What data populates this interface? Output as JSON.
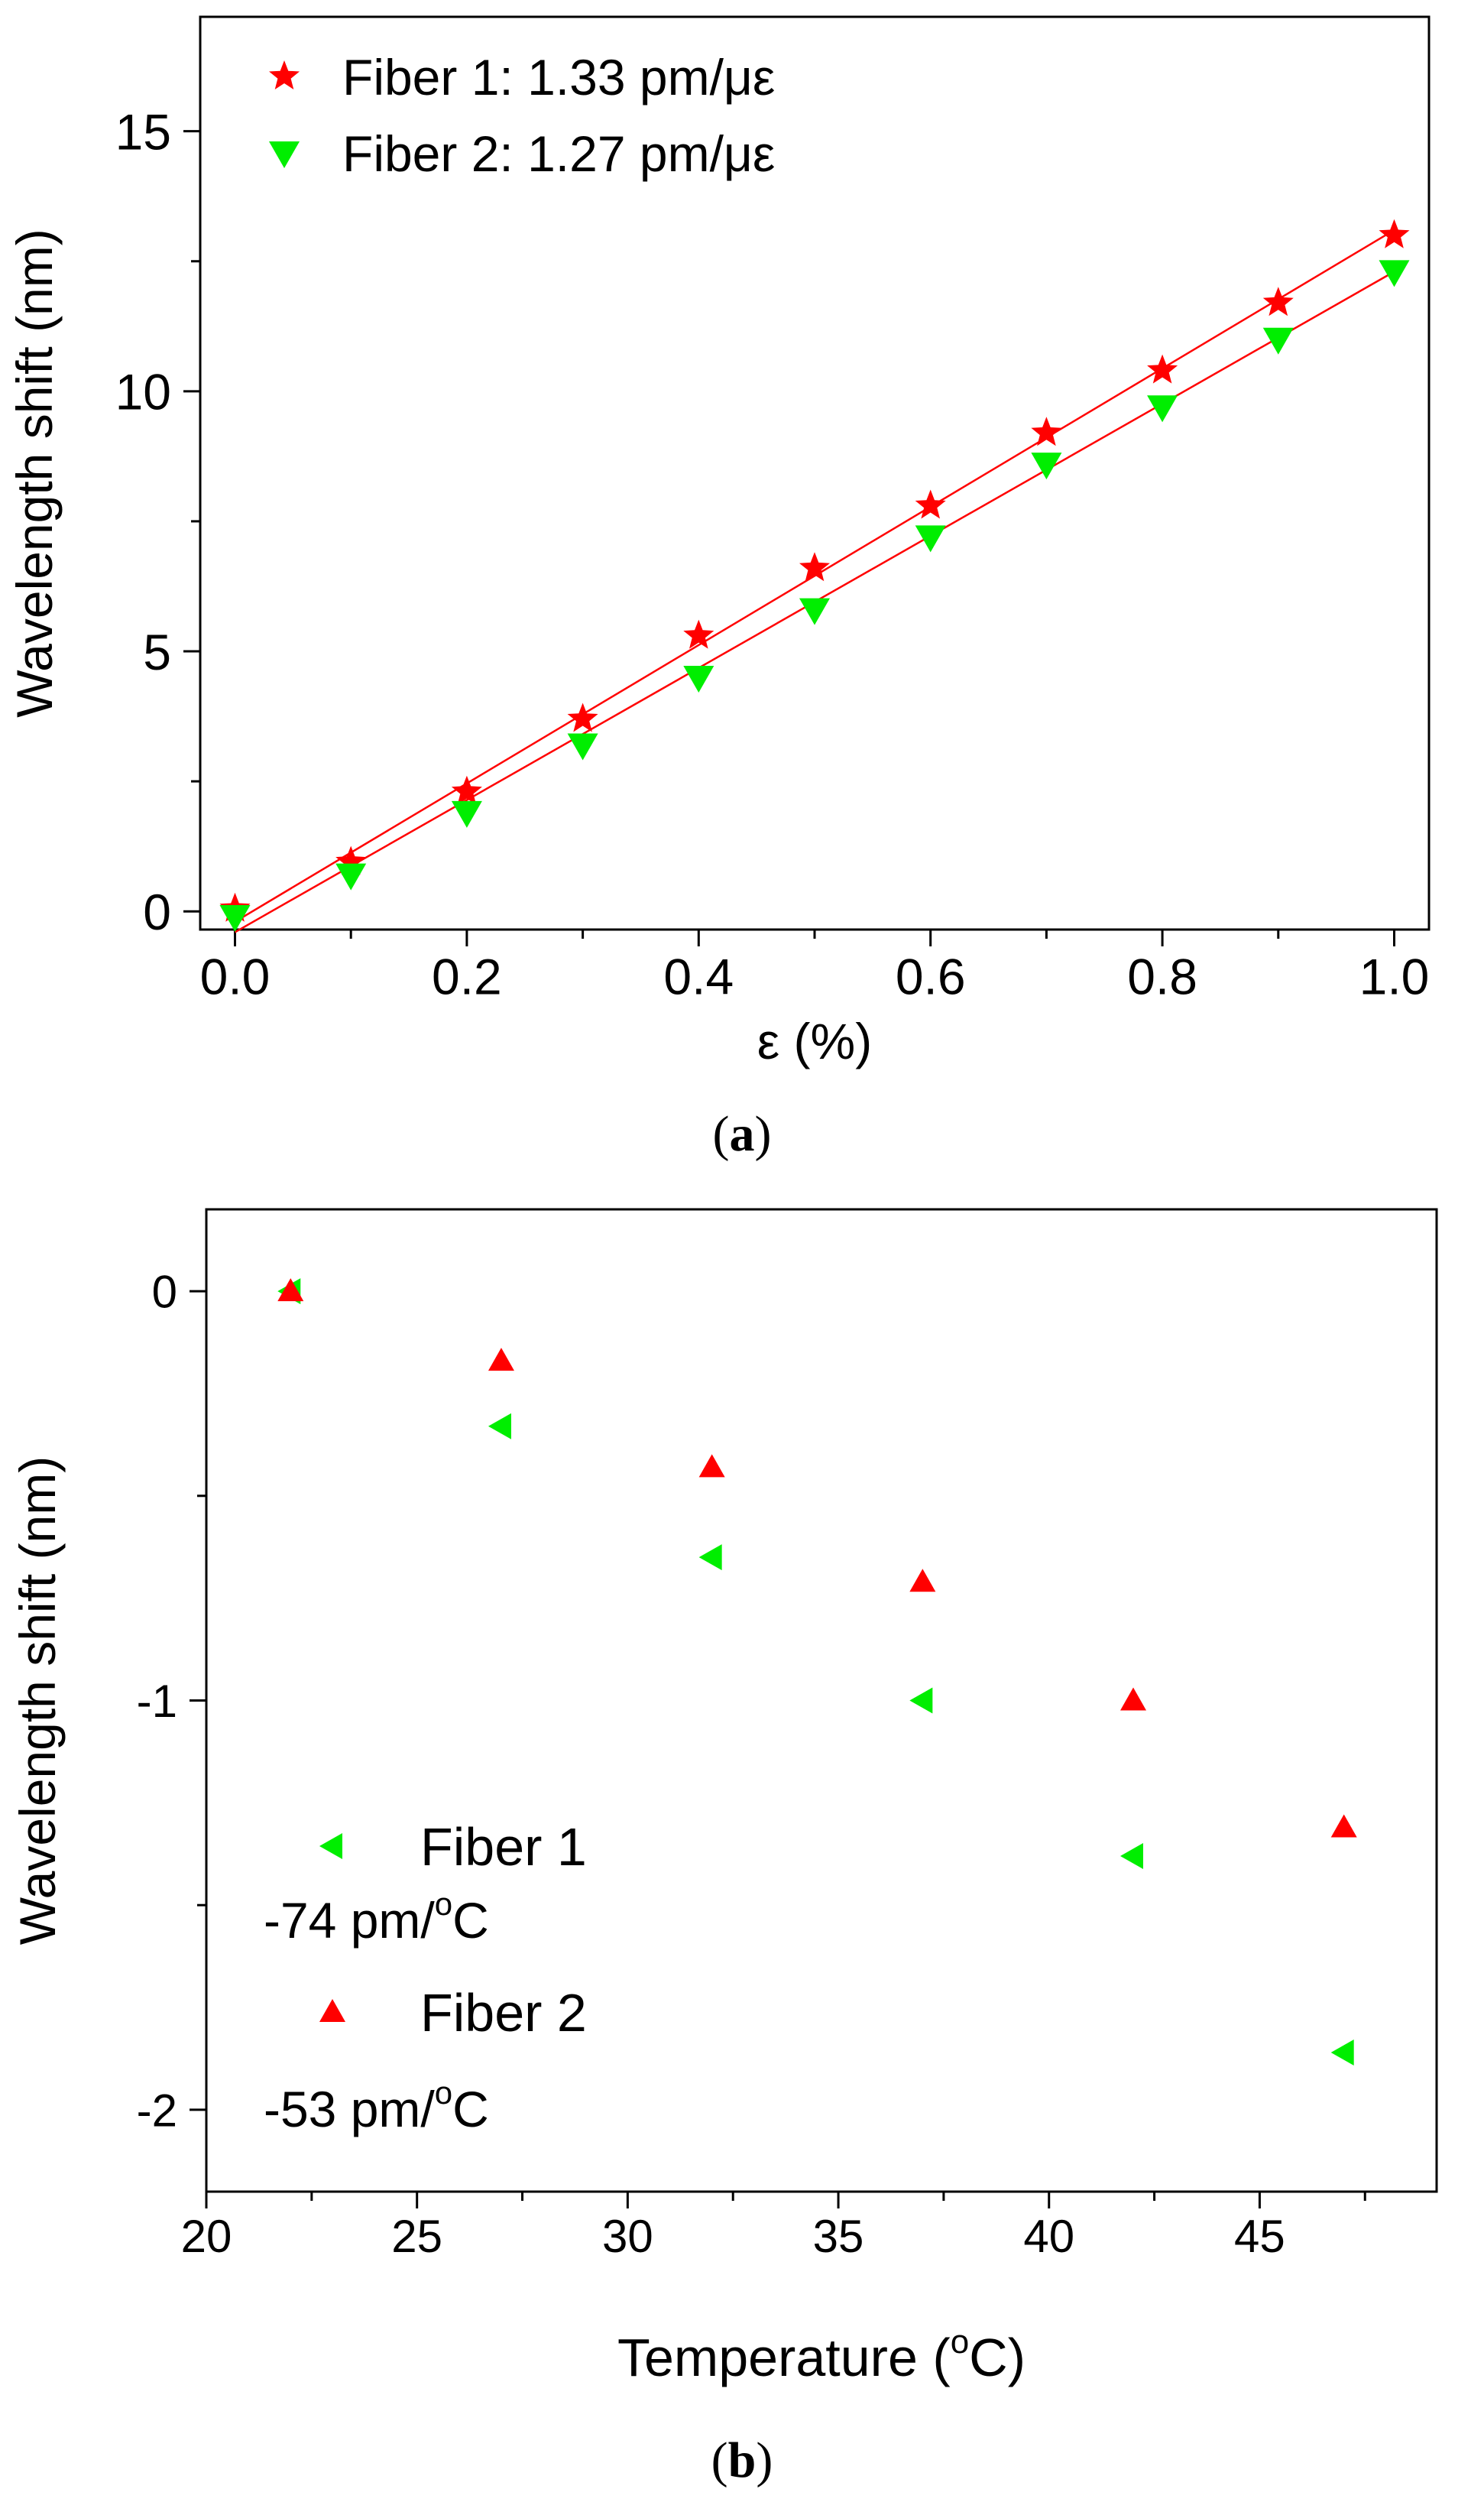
{
  "chart_data": [
    {
      "type": "scatter",
      "panel_label": "a",
      "title": "",
      "xlabel": "ε (%)",
      "ylabel": "Wavelength shift (nm)",
      "xlim": [
        -0.03,
        1.03
      ],
      "ylim": [
        -0.35,
        17.2
      ],
      "xticks": [
        0.0,
        0.2,
        0.4,
        0.6,
        0.8,
        1.0
      ],
      "xtick_labels": [
        "0.0",
        "0.2",
        "0.4",
        "0.6",
        "0.8",
        "1.0"
      ],
      "xminor": [
        0.1,
        0.3,
        0.5,
        0.7,
        0.9
      ],
      "yticks": [
        0,
        5,
        10,
        15
      ],
      "ytick_labels": [
        "0",
        "5",
        "10",
        "15"
      ],
      "yminor": [
        2.5,
        7.5,
        12.5
      ],
      "grid": false,
      "legend_position": "top-left",
      "series": [
        {
          "name": "Fiber 1: 1.33 pm/με",
          "marker": "star",
          "color": "#ff0000",
          "x": [
            0.0,
            0.1,
            0.2,
            0.3,
            0.4,
            0.5,
            0.6,
            0.7,
            0.8,
            0.9,
            1.0
          ],
          "y": [
            0.05,
            0.95,
            2.3,
            3.7,
            5.3,
            6.6,
            7.8,
            9.2,
            10.4,
            11.7,
            13.0
          ],
          "fit": {
            "color": "#ff0000",
            "x": [
              0.0,
              1.0
            ],
            "y": [
              -0.2,
              13.1
            ]
          }
        },
        {
          "name": "Fiber 2: 1.27 pm/με",
          "marker": "triangle-down",
          "color": "#00ee00",
          "x": [
            0.0,
            0.1,
            0.2,
            0.3,
            0.4,
            0.5,
            0.6,
            0.7,
            0.8,
            0.9,
            1.0
          ],
          "y": [
            -0.1,
            0.7,
            1.9,
            3.2,
            4.5,
            5.8,
            7.2,
            8.6,
            9.7,
            11.0,
            12.3
          ],
          "fit": {
            "color": "#ff0000",
            "x": [
              0.0,
              1.0
            ],
            "y": [
              -0.4,
              12.3
            ]
          }
        }
      ]
    },
    {
      "type": "scatter",
      "panel_label": "b",
      "title": "",
      "xlabel_main": "Temperature (",
      "xlabel_super": "o",
      "xlabel_end": "C)",
      "ylabel": "Wavelength shift (nm)",
      "xlim": [
        20,
        49.2
      ],
      "ylim": [
        -2.2,
        0.2
      ],
      "xticks": [
        20,
        25,
        30,
        35,
        40,
        45
      ],
      "xtick_labels": [
        "20",
        "25",
        "30",
        "35",
        "40",
        "45"
      ],
      "xminor": [
        22.5,
        27.5,
        32.5,
        37.5,
        42.5,
        47.5
      ],
      "yticks": [
        0,
        -1,
        -2
      ],
      "ytick_labels": [
        "0",
        "-1",
        "-2"
      ],
      "yminor": [
        -0.5,
        -1.5
      ],
      "grid": false,
      "legend_position": "bottom-left",
      "series": [
        {
          "name": "Fiber 1",
          "slope_main": "-74 pm/",
          "slope_super": "o",
          "slope_end": "C",
          "marker": "triangle-left",
          "color": "#00ee00",
          "x": [
            22,
            27,
            32,
            37,
            42,
            47
          ],
          "y": [
            0,
            -0.33,
            -0.65,
            -1.0,
            -1.38,
            -1.86
          ]
        },
        {
          "name": "Fiber 2",
          "slope_main": "-53 pm/",
          "slope_super": "o",
          "slope_end": "C",
          "marker": "triangle-up",
          "color": "#ff0000",
          "x": [
            22,
            27,
            32,
            37,
            42,
            47
          ],
          "y": [
            0,
            -0.17,
            -0.43,
            -0.71,
            -1.0,
            -1.31
          ]
        }
      ]
    }
  ]
}
